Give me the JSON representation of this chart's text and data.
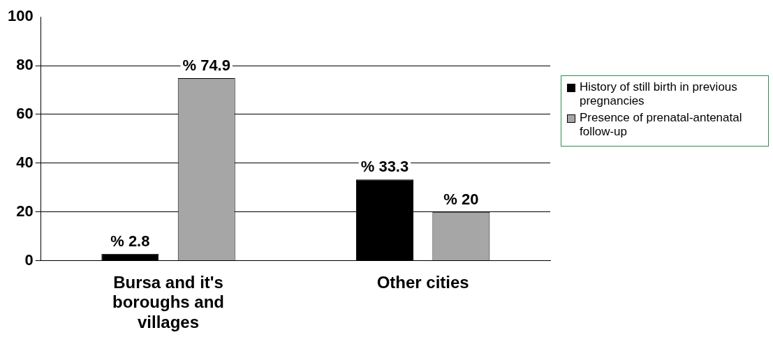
{
  "chart_data": {
    "type": "bar",
    "categories": [
      "Bursa and it's boroughs and villages",
      "Other cities"
    ],
    "series": [
      {
        "name": "History of still birth in previous pregnancies",
        "color": "#000000",
        "values": [
          2.8,
          33.3
        ],
        "value_labels": [
          "% 2.8",
          "% 33.3"
        ]
      },
      {
        "name": "Presence of prenatal-antenatal follow-up",
        "color": "#a6a6a6",
        "values": [
          74.9,
          20
        ],
        "value_labels": [
          "% 74.9",
          "% 20"
        ]
      }
    ],
    "ylim": [
      0,
      100
    ],
    "yticks": [
      0,
      20,
      40,
      60,
      80,
      100
    ],
    "grid": "y",
    "legend": "right"
  }
}
